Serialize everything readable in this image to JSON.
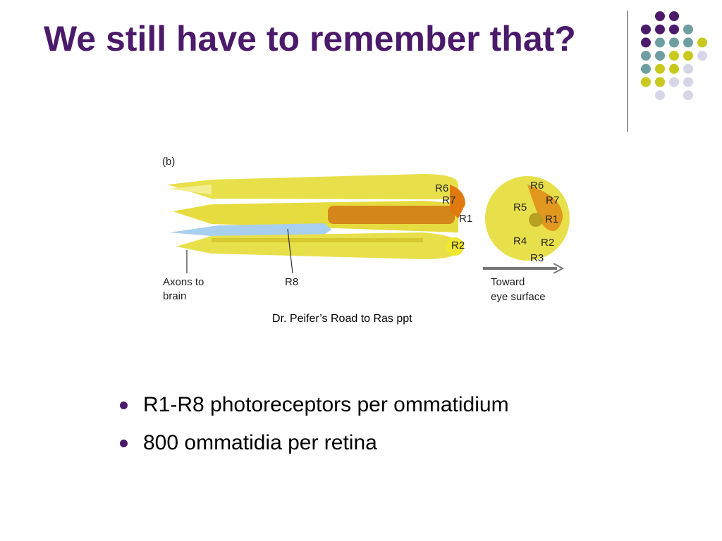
{
  "slide": {
    "title": "We still have to remember that?",
    "figure": {
      "panel": "(b)",
      "side_labels": [
        "R6",
        "R7",
        "R1",
        "R2"
      ],
      "axons_lines": [
        "Axons to",
        "brain"
      ],
      "r8": "R8",
      "section_labels": [
        "R6",
        "R7",
        "R5",
        "R1",
        "R4",
        "R2",
        "R3"
      ],
      "toward_lines": [
        "Toward",
        "eye surface"
      ]
    },
    "caption": "Dr. Peifer’s Road to Ras ppt",
    "bullets": [
      "R1-R8 photoreceptors per ommatidium",
      "800 ommatidia per retina"
    ]
  }
}
